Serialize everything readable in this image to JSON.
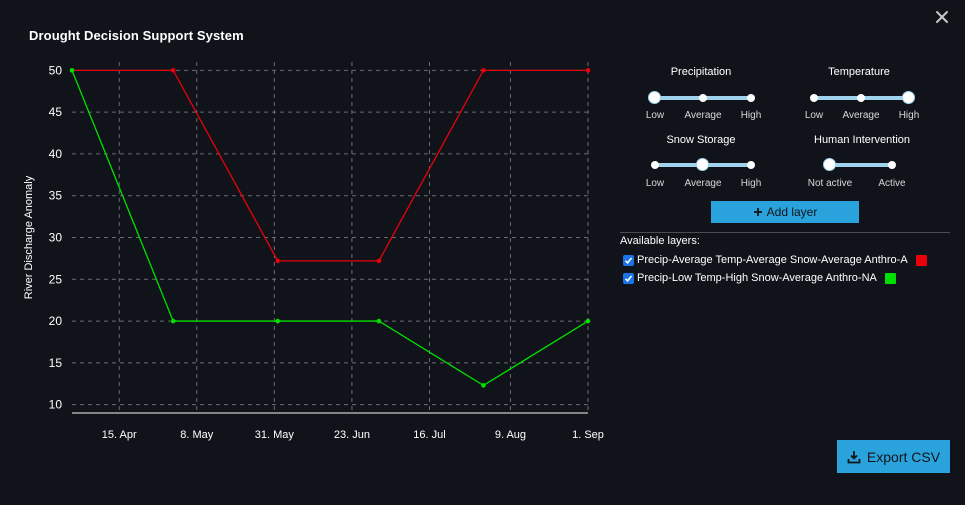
{
  "app": {
    "title": "Drought Decision Support System"
  },
  "controls": {
    "precipitation": {
      "title": "Precipitation",
      "labels": [
        "Low",
        "Average",
        "High"
      ],
      "selected": "Low"
    },
    "temperature": {
      "title": "Temperature",
      "labels": [
        "Low",
        "Average",
        "High"
      ],
      "selected": "High"
    },
    "snow_storage": {
      "title": "Snow Storage",
      "labels": [
        "Low",
        "Average",
        "High"
      ],
      "selected": "Average"
    },
    "human_intervention": {
      "title": "Human Intervention",
      "labels": [
        "Not active",
        "Active"
      ],
      "selected": "Not active"
    }
  },
  "add_layer_label": "Add layer",
  "layers": {
    "title": "Available layers:",
    "items": [
      {
        "label": "Precip-Average Temp-Average Snow-Average Anthro-A",
        "color": "#e8000b",
        "checked": true
      },
      {
        "label": "Precip-Low Temp-High Snow-Average Anthro-NA",
        "color": "#00e000",
        "checked": true
      }
    ]
  },
  "export_label": "Export CSV",
  "chart_data": {
    "type": "line",
    "ylabel": "River Discharge Anomaly",
    "xlabel": "",
    "ylim": [
      9,
      51
    ],
    "yticks": [
      10,
      15,
      20,
      25,
      30,
      35,
      40,
      45,
      50
    ],
    "xticks": [
      "15. Apr",
      "8. May",
      "31. May",
      "23. Jun",
      "16. Jul",
      "9. Aug",
      "1. Sep"
    ],
    "x": [
      "2023-04-01",
      "2023-05-01",
      "2023-06-01",
      "2023-07-01",
      "2023-08-01",
      "2023-09-01"
    ],
    "grid": true,
    "series": [
      {
        "color": "#e8000b",
        "values": [
          50,
          50,
          27.2,
          27.2,
          50,
          50
        ]
      },
      {
        "color": "#00e000",
        "values": [
          50,
          20,
          20,
          20,
          12.3,
          20
        ]
      }
    ]
  }
}
